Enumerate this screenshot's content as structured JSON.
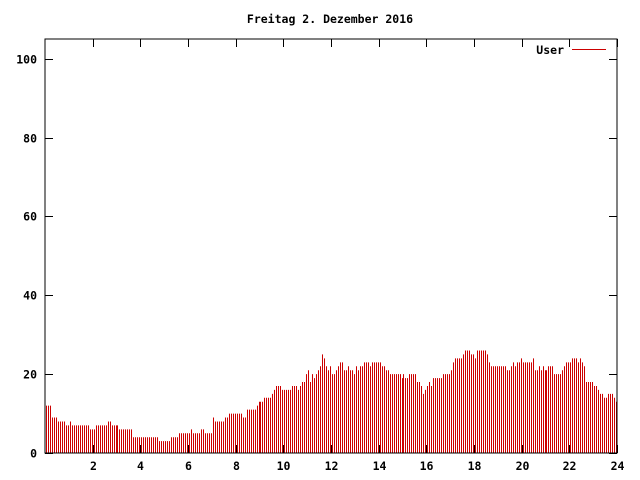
{
  "chart_data": {
    "type": "bar",
    "title": "Freitag 2. Dezember 2016",
    "legend": {
      "label": "User",
      "position": "top-right"
    },
    "xlabel": "",
    "ylabel": "",
    "xlim": [
      0,
      24
    ],
    "ylim": [
      0,
      105
    ],
    "x_ticks": [
      2,
      4,
      6,
      8,
      10,
      12,
      14,
      16,
      18,
      20,
      22,
      24
    ],
    "y_ticks": [
      0,
      20,
      40,
      60,
      80,
      100
    ],
    "grid": false,
    "colors": {
      "series": "#cc0000",
      "axis": "#000000",
      "background": "#ffffff"
    },
    "series": [
      {
        "name": "User",
        "points_per_hour": 12,
        "values": [
          12,
          12,
          12,
          9,
          9,
          9,
          8,
          8,
          8,
          8,
          7,
          7,
          8,
          7,
          7,
          7,
          7,
          7,
          7,
          7,
          7,
          7,
          6,
          6,
          6,
          7,
          7,
          7,
          7,
          7,
          7,
          8,
          8,
          7,
          7,
          7,
          7,
          6,
          6,
          6,
          6,
          6,
          6,
          6,
          4,
          4,
          4,
          4,
          4,
          4,
          4,
          4,
          4,
          4,
          4,
          4,
          4,
          3,
          3,
          3,
          3,
          3,
          3,
          4,
          4,
          4,
          4,
          5,
          5,
          5,
          5,
          5,
          5,
          6,
          5,
          5,
          5,
          5,
          6,
          6,
          5,
          5,
          5,
          5,
          9,
          8,
          8,
          8,
          8,
          8,
          9,
          9,
          10,
          10,
          10,
          10,
          10,
          10,
          10,
          9,
          9,
          11,
          11,
          11,
          11,
          11,
          12,
          13,
          13,
          13,
          14,
          14,
          14,
          14,
          15,
          16,
          17,
          17,
          17,
          16,
          16,
          16,
          16,
          16,
          17,
          17,
          17,
          16,
          17,
          18,
          18,
          20,
          21,
          18,
          20,
          19,
          20,
          21,
          22,
          25,
          24,
          22,
          21,
          22,
          20,
          20,
          21,
          22,
          23,
          23,
          21,
          21,
          22,
          21,
          21,
          20,
          22,
          21,
          22,
          22,
          23,
          23,
          23,
          22,
          23,
          23,
          23,
          23,
          23,
          22,
          22,
          21,
          21,
          20,
          20,
          20,
          20,
          20,
          20,
          19,
          20,
          19,
          19,
          20,
          20,
          20,
          20,
          18,
          18,
          17,
          15,
          16,
          17,
          18,
          17,
          19,
          19,
          19,
          19,
          19,
          20,
          20,
          20,
          20,
          21,
          23,
          24,
          24,
          24,
          24,
          25,
          26,
          26,
          26,
          25,
          25,
          24,
          26,
          26,
          26,
          26,
          26,
          25,
          23,
          22,
          22,
          22,
          22,
          22,
          22,
          22,
          22,
          21,
          21,
          22,
          23,
          22,
          23,
          23,
          24,
          23,
          23,
          23,
          23,
          23,
          24,
          21,
          21,
          22,
          21,
          22,
          21,
          21,
          22,
          22,
          22,
          20,
          20,
          20,
          20,
          21,
          22,
          23,
          23,
          23,
          24,
          24,
          24,
          23,
          24,
          23,
          22,
          18,
          18,
          18,
          18,
          17,
          17,
          16,
          15,
          15,
          14,
          14,
          15,
          15,
          15,
          14,
          13
        ]
      }
    ]
  }
}
